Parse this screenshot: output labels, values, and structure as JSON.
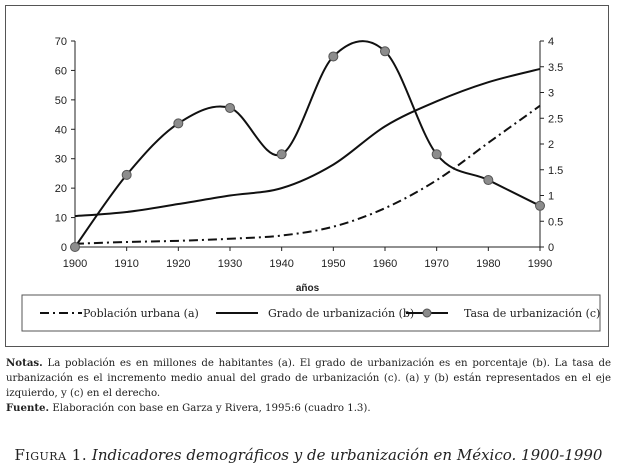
{
  "chart_data": {
    "type": "line",
    "x": [
      1900,
      1910,
      1920,
      1930,
      1940,
      1950,
      1960,
      1970,
      1980,
      1990
    ],
    "xlabel": "años",
    "ylim_left": [
      0,
      70
    ],
    "yticks_left": [
      0,
      10,
      20,
      30,
      40,
      50,
      60,
      70
    ],
    "ylim_right": [
      0,
      4
    ],
    "yticks_right": [
      0,
      0.5,
      1,
      1.5,
      2,
      2.5,
      3,
      3.5,
      4
    ],
    "series": [
      {
        "name": "Población urbana (a)",
        "axis": "left",
        "style": "dash-dot",
        "values": [
          1.1,
          1.7,
          2.1,
          2.8,
          3.9,
          6.9,
          13.2,
          22.7,
          35.4,
          48.0
        ]
      },
      {
        "name": "Grado de urbanización (b)",
        "axis": "left",
        "style": "solid",
        "values": [
          10.5,
          11.9,
          14.6,
          17.5,
          20.0,
          28.0,
          41.0,
          49.5,
          56.0,
          60.5
        ]
      },
      {
        "name": "Tasa de urbanización (c)",
        "axis": "right",
        "style": "solid-markers",
        "values": [
          0.0,
          1.4,
          2.4,
          2.7,
          1.8,
          3.7,
          3.8,
          1.8,
          1.3,
          0.8
        ]
      }
    ],
    "grid": false,
    "legend_position": "bottom"
  },
  "notes": {
    "notas_label": "Notas.",
    "notas_text": "La población es en millones de habitantes (a). El grado de urbanización es en porcentaje (b). La tasa de urbanización es el incremento medio anual del grado de urbanización (c). (a) y (b) están representados en el eje izquierdo, y (c) en el derecho.",
    "fuente_label": "Fuente.",
    "fuente_text": "Elaboración con base en Garza y Rivera, 1995:6 (cuadro 1.3)."
  },
  "caption": {
    "prefix": "Figura 1.",
    "text": "Indicadores demográficos y de urbanización en México. 1900-1990"
  }
}
